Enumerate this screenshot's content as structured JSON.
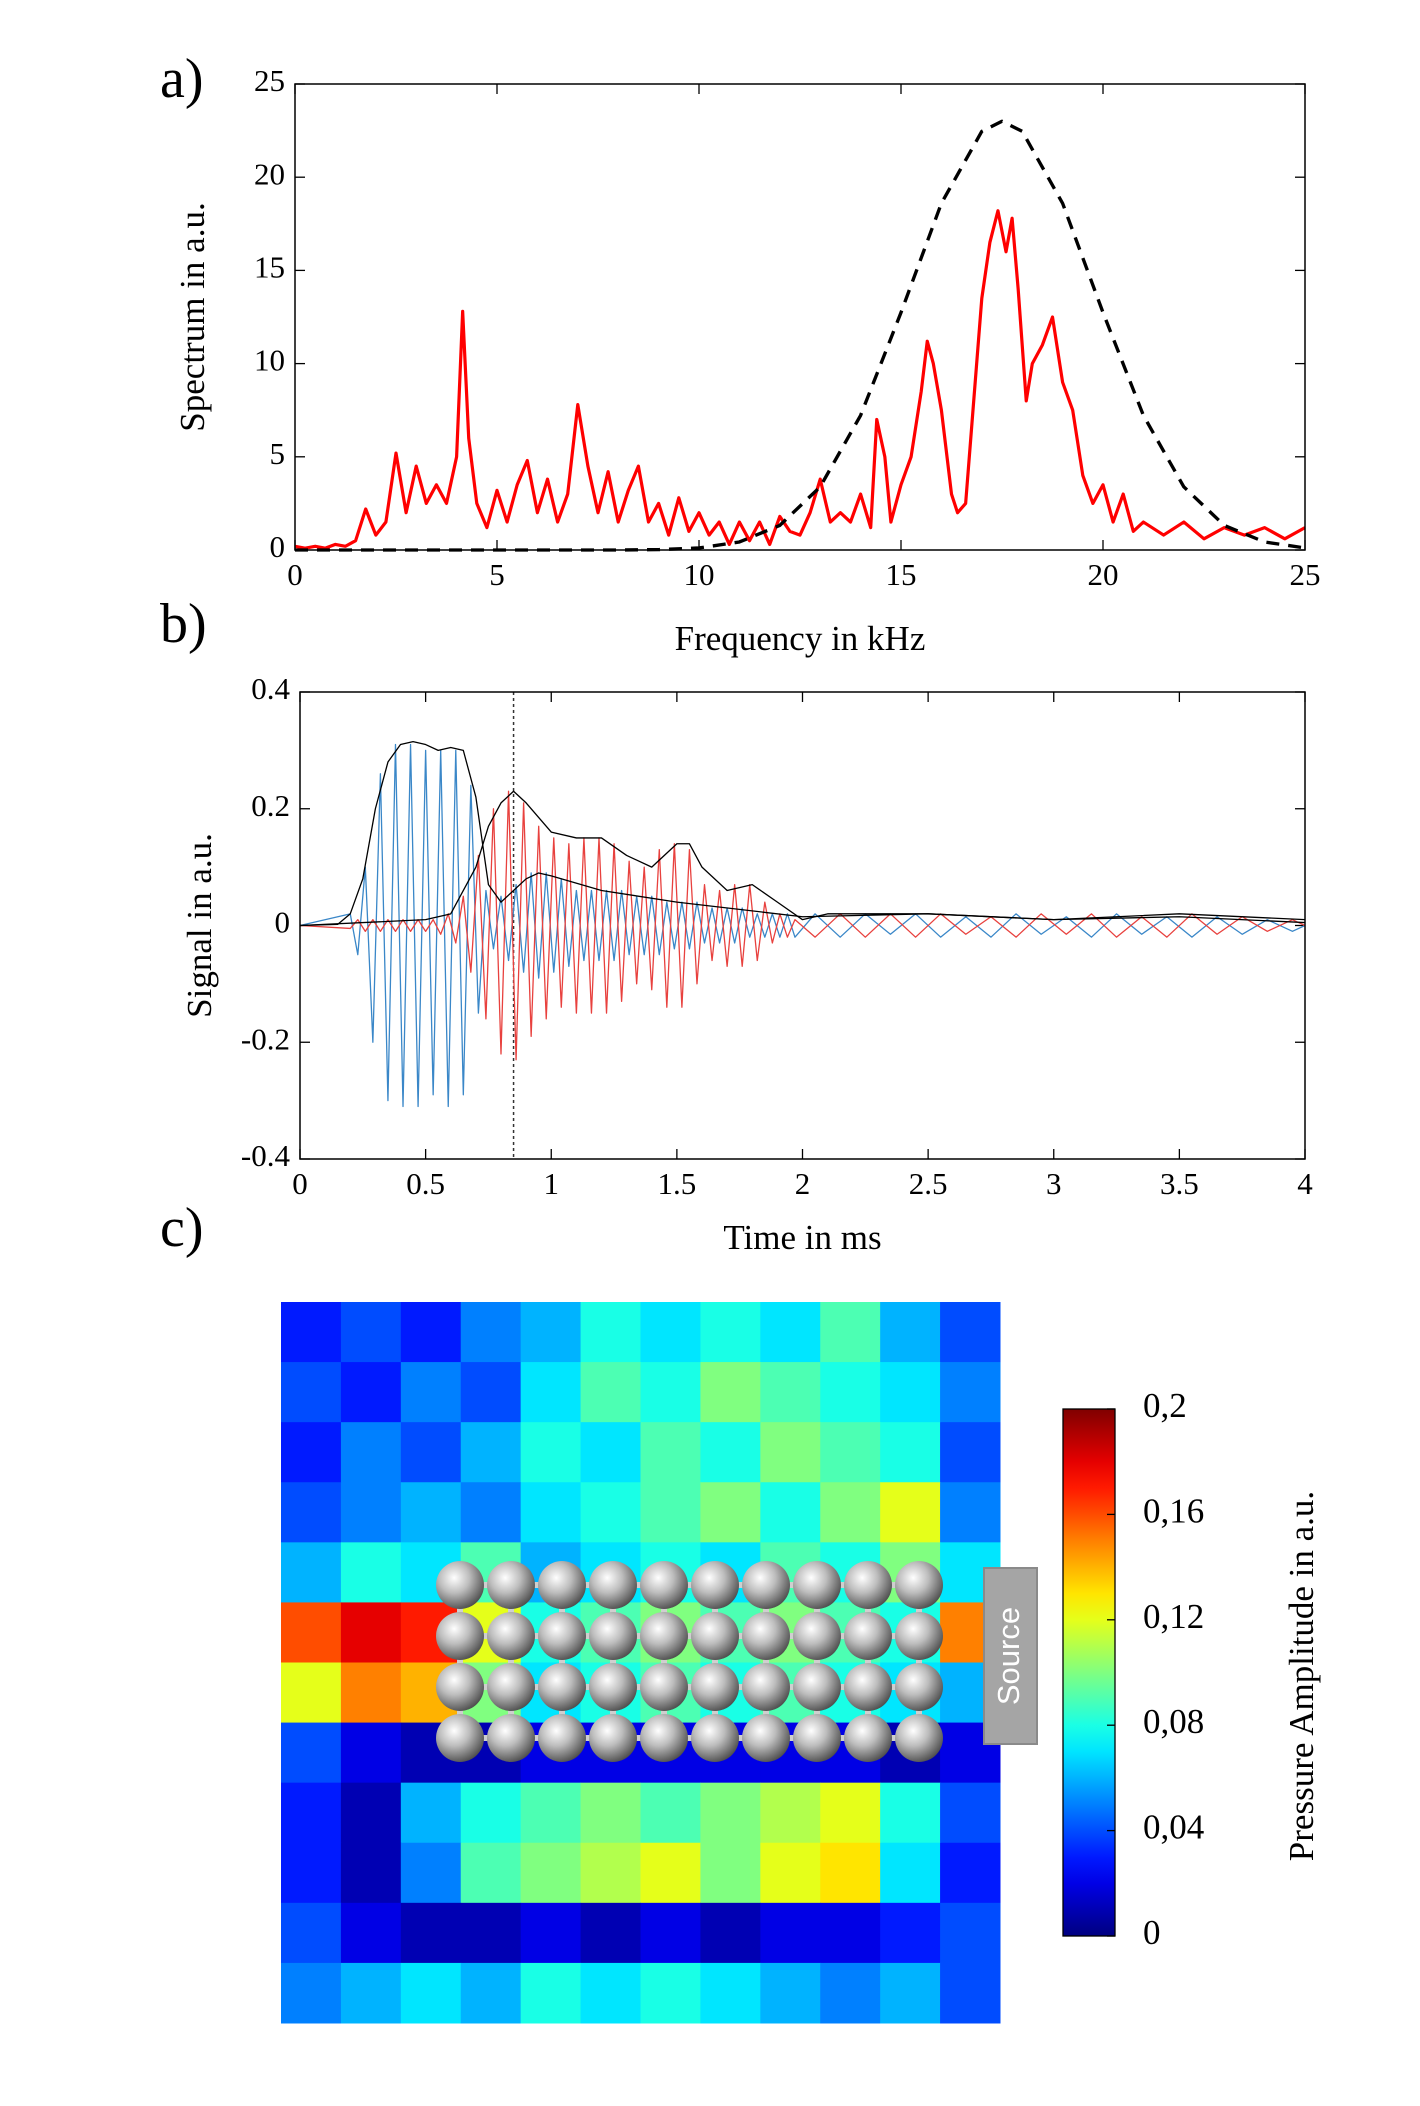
{
  "chart_data": [
    {
      "type": "line",
      "label": "a)",
      "xlabel": "Frequency in kHz",
      "ylabel": "Spectrum in a.u.",
      "xlim": [
        0,
        25
      ],
      "ylim": [
        0,
        25
      ],
      "xticks": [
        0,
        5,
        10,
        15,
        20,
        25
      ],
      "yticks": [
        0,
        5,
        10,
        15,
        20,
        25
      ],
      "series": [
        {
          "color": "#ff0000",
          "linestyle": "solid",
          "x": [
            0,
            0.25,
            0.5,
            0.75,
            1,
            1.25,
            1.5,
            1.75,
            2,
            2.25,
            2.5,
            2.75,
            3,
            3.25,
            3.5,
            3.75,
            4,
            4.15,
            4.3,
            4.5,
            4.75,
            5,
            5.25,
            5.5,
            5.75,
            6,
            6.25,
            6.5,
            6.75,
            7,
            7.25,
            7.5,
            7.75,
            8,
            8.25,
            8.5,
            8.75,
            9,
            9.25,
            9.5,
            9.75,
            10,
            10.25,
            10.5,
            10.75,
            11,
            11.25,
            11.5,
            11.75,
            12,
            12.25,
            12.5,
            12.75,
            13,
            13.25,
            13.5,
            13.75,
            14,
            14.25,
            14.4,
            14.6,
            14.75,
            15,
            15.25,
            15.5,
            15.65,
            15.8,
            16,
            16.25,
            16.4,
            16.6,
            16.8,
            17,
            17.2,
            17.4,
            17.6,
            17.75,
            17.9,
            18.1,
            18.25,
            18.5,
            18.75,
            19,
            19.25,
            19.5,
            19.75,
            20,
            20.25,
            20.5,
            20.75,
            21,
            21.5,
            22,
            22.5,
            23,
            23.5,
            24,
            24.5,
            25
          ],
          "values": [
            0.2,
            0.1,
            0.2,
            0.1,
            0.3,
            0.2,
            0.5,
            2.2,
            0.8,
            1.5,
            5.2,
            2,
            4.5,
            2.5,
            3.5,
            2.5,
            5,
            12.8,
            6,
            2.5,
            1.2,
            3.2,
            1.5,
            3.5,
            4.8,
            2,
            3.8,
            1.5,
            3,
            7.8,
            4.5,
            2,
            4.2,
            1.5,
            3.2,
            4.5,
            1.5,
            2.5,
            0.8,
            2.8,
            1,
            2,
            0.8,
            1.5,
            0.3,
            1.5,
            0.5,
            1.5,
            0.3,
            1.8,
            1,
            0.8,
            2,
            3.8,
            1.5,
            2,
            1.5,
            3,
            1.2,
            7,
            5,
            1.5,
            3.5,
            5,
            8.5,
            11.2,
            10,
            7.5,
            3,
            2,
            2.5,
            8,
            13.5,
            16.5,
            18.2,
            16,
            17.8,
            14,
            8,
            10,
            11,
            12.5,
            9,
            7.5,
            4,
            2.5,
            3.5,
            1.5,
            3,
            1,
            1.5,
            0.8,
            1.5,
            0.6,
            1.2,
            0.8,
            1.2,
            0.6,
            1.2
          ]
        },
        {
          "color": "#000000",
          "linestyle": "dashed",
          "x": [
            0,
            1,
            2,
            3,
            4,
            5,
            6,
            7,
            8,
            9,
            10,
            11,
            12,
            13,
            14,
            15,
            16,
            17,
            17.5,
            18,
            19,
            20,
            21,
            22,
            23,
            24,
            25
          ],
          "values": [
            0,
            0,
            0,
            0,
            0,
            0,
            0,
            0,
            0,
            0.02,
            0.11,
            0.43,
            1.32,
            3.39,
            7.22,
            12.74,
            18.6,
            22.46,
            23,
            22.46,
            18.6,
            12.74,
            7.22,
            3.39,
            1.32,
            0.43,
            0.11
          ]
        }
      ]
    },
    {
      "type": "line",
      "label": "b)",
      "xlabel": "Time in ms",
      "ylabel": "Signal in a.u.",
      "xlim": [
        0,
        4
      ],
      "ylim": [
        -0.4,
        0.4
      ],
      "xticks": [
        0,
        0.5,
        1,
        1.5,
        2,
        2.5,
        3,
        3.5,
        4
      ],
      "yticks": [
        -0.4,
        -0.2,
        0,
        0.2,
        0.4
      ],
      "vlines": [
        0.85
      ],
      "series": [
        {
          "color": "#3a87c8",
          "linestyle": "solid",
          "x": [
            0,
            0.2,
            0.23,
            0.26,
            0.29,
            0.32,
            0.35,
            0.38,
            0.41,
            0.44,
            0.47,
            0.5,
            0.53,
            0.56,
            0.59,
            0.62,
            0.65,
            0.68,
            0.71,
            0.74,
            0.77,
            0.8,
            0.83,
            0.86,
            0.89,
            0.92,
            0.95,
            0.98,
            1.01,
            1.04,
            1.07,
            1.1,
            1.13,
            1.16,
            1.19,
            1.22,
            1.25,
            1.28,
            1.31,
            1.34,
            1.37,
            1.4,
            1.43,
            1.46,
            1.49,
            1.52,
            1.55,
            1.58,
            1.61,
            1.64,
            1.67,
            1.7,
            1.73,
            1.76,
            1.79,
            1.82,
            1.85,
            1.88,
            1.91,
            1.94,
            1.97,
            2.05,
            2.15,
            2.25,
            2.35,
            2.45,
            2.55,
            2.65,
            2.75,
            2.85,
            2.95,
            3.05,
            3.15,
            3.25,
            3.35,
            3.45,
            3.55,
            3.65,
            3.75,
            3.85,
            3.95,
            4
          ],
          "values": [
            0,
            0.02,
            -0.05,
            0.1,
            -0.2,
            0.26,
            -0.3,
            0.31,
            -0.31,
            0.31,
            -0.31,
            0.3,
            -0.29,
            0.3,
            -0.31,
            0.3,
            -0.29,
            0.24,
            -0.15,
            0.06,
            -0.04,
            0.05,
            -0.06,
            0.07,
            -0.08,
            0.09,
            -0.09,
            0.09,
            -0.08,
            0.08,
            -0.07,
            0.06,
            -0.06,
            0.06,
            -0.06,
            0.06,
            -0.06,
            0.06,
            -0.05,
            0.05,
            -0.05,
            0.05,
            -0.05,
            0.04,
            -0.04,
            0.04,
            -0.04,
            0.04,
            -0.03,
            0.03,
            -0.03,
            0.03,
            -0.03,
            0.03,
            -0.02,
            0.02,
            -0.02,
            0.02,
            -0.02,
            0.02,
            -0.02,
            0.02,
            -0.02,
            0.02,
            -0.015,
            0.02,
            -0.02,
            0.015,
            -0.02,
            0.02,
            -0.015,
            0.015,
            -0.02,
            0.02,
            -0.015,
            0.015,
            -0.02,
            0.015,
            -0.015,
            0.01,
            -0.01,
            0
          ]
        },
        {
          "color": "#e8413e",
          "linestyle": "solid",
          "x": [
            0,
            0.2,
            0.23,
            0.26,
            0.29,
            0.32,
            0.35,
            0.38,
            0.41,
            0.44,
            0.47,
            0.5,
            0.53,
            0.56,
            0.59,
            0.62,
            0.65,
            0.68,
            0.71,
            0.74,
            0.77,
            0.8,
            0.83,
            0.86,
            0.89,
            0.92,
            0.95,
            0.98,
            1.01,
            1.04,
            1.07,
            1.1,
            1.13,
            1.16,
            1.19,
            1.22,
            1.25,
            1.28,
            1.31,
            1.34,
            1.37,
            1.4,
            1.43,
            1.46,
            1.49,
            1.52,
            1.55,
            1.58,
            1.61,
            1.64,
            1.67,
            1.7,
            1.73,
            1.76,
            1.79,
            1.82,
            1.85,
            1.88,
            1.91,
            1.94,
            1.97,
            2.05,
            2.15,
            2.25,
            2.35,
            2.45,
            2.55,
            2.65,
            2.75,
            2.85,
            2.95,
            3.05,
            3.15,
            3.25,
            3.35,
            3.45,
            3.55,
            3.65,
            3.75,
            3.85,
            3.95,
            4
          ],
          "values": [
            0,
            -0.005,
            0.01,
            -0.01,
            0.01,
            -0.01,
            0.01,
            -0.01,
            0.01,
            -0.01,
            0.01,
            -0.01,
            0.01,
            -0.015,
            0.02,
            -0.03,
            0.05,
            -0.08,
            0.12,
            -0.16,
            0.2,
            -0.22,
            0.23,
            -0.23,
            0.21,
            -0.19,
            0.17,
            -0.16,
            0.15,
            -0.14,
            0.14,
            -0.15,
            0.15,
            -0.15,
            0.15,
            -0.15,
            0.14,
            -0.13,
            0.11,
            -0.1,
            0.1,
            -0.11,
            0.13,
            -0.14,
            0.14,
            -0.14,
            0.13,
            -0.1,
            0.07,
            -0.06,
            0.06,
            -0.07,
            0.07,
            -0.07,
            0.07,
            -0.06,
            0.04,
            -0.03,
            0.02,
            -0.02,
            0.01,
            -0.02,
            0.02,
            -0.02,
            0.02,
            -0.02,
            0.02,
            -0.015,
            0.015,
            -0.02,
            0.02,
            -0.015,
            0.02,
            -0.02,
            0.015,
            -0.02,
            0.02,
            -0.015,
            0.015,
            -0.01,
            0.01,
            0
          ]
        },
        {
          "color": "#000000",
          "linestyle": "solid",
          "x": [
            0,
            0.15,
            0.2,
            0.25,
            0.3,
            0.35,
            0.4,
            0.45,
            0.5,
            0.55,
            0.6,
            0.65,
            0.7,
            0.75,
            0.8,
            0.9,
            0.95,
            1,
            1.2,
            1.5,
            2,
            2.5,
            3,
            3.5,
            4
          ],
          "values": [
            0,
            0.002,
            0.02,
            0.08,
            0.2,
            0.28,
            0.31,
            0.315,
            0.31,
            0.3,
            0.305,
            0.3,
            0.22,
            0.07,
            0.04,
            0.08,
            0.09,
            0.085,
            0.06,
            0.04,
            0.015,
            0.02,
            0.01,
            0.015,
            0.005
          ]
        },
        {
          "color": "#000000",
          "linestyle": "solid",
          "x": [
            0,
            0.5,
            0.6,
            0.7,
            0.75,
            0.8,
            0.85,
            0.9,
            1,
            1.1,
            1.2,
            1.3,
            1.4,
            1.5,
            1.55,
            1.6,
            1.7,
            1.8,
            1.9,
            2,
            2.1,
            2.5,
            3,
            3.5,
            4
          ],
          "values": [
            0,
            0.01,
            0.02,
            0.1,
            0.17,
            0.21,
            0.23,
            0.21,
            0.16,
            0.15,
            0.15,
            0.12,
            0.1,
            0.14,
            0.14,
            0.1,
            0.06,
            0.07,
            0.04,
            0.01,
            0.02,
            0.02,
            0.01,
            0.02,
            0.01
          ]
        }
      ]
    },
    {
      "type": "heatmap",
      "label": "c)",
      "annotation": "Source",
      "colormap": "jet",
      "clim": [
        0,
        0.2
      ],
      "colorbar_label": "Pressure Amplitude in a.u.",
      "colorbar_ticks": [
        0,
        {
          "value": 0.04,
          "label": "0,04"
        },
        {
          "value": 0.08,
          "label": "0,08"
        },
        {
          "value": 0.12,
          "label": "0,12"
        },
        {
          "value": 0.16,
          "label": "0,16"
        },
        {
          "value": 0.2,
          "label": "0,2"
        }
      ],
      "values": [
        [
          0.03,
          0.04,
          0.03,
          0.05,
          0.06,
          0.08,
          0.07,
          0.08,
          0.07,
          0.09,
          0.06,
          0.04
        ],
        [
          0.04,
          0.03,
          0.05,
          0.04,
          0.07,
          0.09,
          0.08,
          0.1,
          0.09,
          0.08,
          0.07,
          0.05
        ],
        [
          0.03,
          0.05,
          0.04,
          0.06,
          0.08,
          0.07,
          0.09,
          0.08,
          0.1,
          0.09,
          0.08,
          0.04
        ],
        [
          0.04,
          0.05,
          0.06,
          0.05,
          0.07,
          0.08,
          0.09,
          0.1,
          0.08,
          0.1,
          0.12,
          0.05
        ],
        [
          0.06,
          0.08,
          0.07,
          0.09,
          0.06,
          0.07,
          0.08,
          0.07,
          0.09,
          0.08,
          0.1,
          0.07
        ],
        [
          0.16,
          0.18,
          0.17,
          0.12,
          0.08,
          0.09,
          0.1,
          0.09,
          0.1,
          0.09,
          0.08,
          0.15
        ],
        [
          0.12,
          0.15,
          0.14,
          0.1,
          0.07,
          0.08,
          0.09,
          0.08,
          0.09,
          0.08,
          0.07,
          0.06
        ],
        [
          0.04,
          0.02,
          0.01,
          0.01,
          0.02,
          0.02,
          0.02,
          0.02,
          0.02,
          0.02,
          0.01,
          0.02
        ],
        [
          0.03,
          0.01,
          0.06,
          0.08,
          0.09,
          0.1,
          0.09,
          0.1,
          0.11,
          0.12,
          0.08,
          0.04
        ],
        [
          0.03,
          0.01,
          0.05,
          0.09,
          0.1,
          0.11,
          0.12,
          0.1,
          0.12,
          0.13,
          0.07,
          0.03
        ],
        [
          0.04,
          0.02,
          0.01,
          0.01,
          0.02,
          0.01,
          0.02,
          0.01,
          0.02,
          0.02,
          0.03,
          0.04
        ],
        [
          0.05,
          0.06,
          0.07,
          0.06,
          0.08,
          0.07,
          0.08,
          0.07,
          0.06,
          0.05,
          0.06,
          0.04
        ]
      ]
    }
  ]
}
